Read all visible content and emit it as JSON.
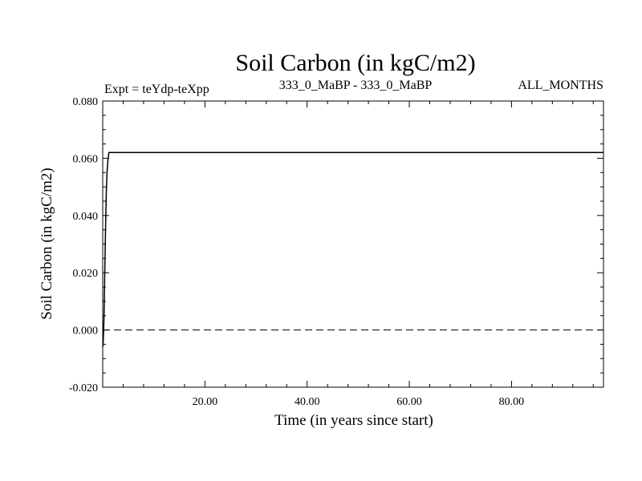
{
  "chart_data": {
    "type": "line",
    "title": "Soil Carbon (in kgC/m2)",
    "subtitle_left": "Expt = teYdp-teXpp",
    "subtitle_center": "333_0_MaBP - 333_0_MaBP",
    "subtitle_right": "ALL_MONTHS",
    "xlabel": "Time (in years since start)",
    "ylabel": "Soil Carbon (in kgC/m2)",
    "xlim": [
      0,
      98
    ],
    "ylim": [
      -0.02,
      0.08
    ],
    "x_ticks": [
      20,
      40,
      60,
      80
    ],
    "x_tick_labels": [
      "20.00",
      "40.00",
      "60.00",
      "80.00"
    ],
    "y_ticks": [
      -0.02,
      0,
      0.02,
      0.04,
      0.06,
      0.08
    ],
    "y_tick_labels": [
      "-0.020",
      "0.000",
      "0.020",
      "0.040",
      "0.060",
      "0.080"
    ],
    "x_minor_step": 4,
    "y_minor_step": 0.005,
    "zero_line": {
      "y": 0,
      "style": "dashed"
    },
    "series": [
      {
        "x": [
          0,
          0.1,
          0.25,
          0.4,
          0.55,
          0.7,
          0.85,
          1.0,
          1.2,
          98
        ],
        "values": [
          -0.006,
          -0.004,
          0.004,
          0.02,
          0.035,
          0.048,
          0.055,
          0.059,
          0.062,
          0.062
        ],
        "color": "#000000"
      }
    ],
    "grid": false
  }
}
